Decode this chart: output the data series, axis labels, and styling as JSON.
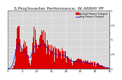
{
  "title": "S.Proj/Inverter Performance: W ARRAY PF",
  "legend_actual": "Actual Power Output",
  "legend_avg": "Avg Power Output",
  "bg_color": "#ffffff",
  "plot_bg_color": "#d8d8d8",
  "bar_color": "#dd0000",
  "avg_color": "#0000cc",
  "grid_color": "#ffffff",
  "ylim": [
    0,
    1.0
  ],
  "yticks": [
    0.0,
    0.125,
    0.25,
    0.375,
    0.5,
    0.625,
    0.75,
    0.875,
    1.0
  ],
  "ytick_labels": [
    "0",
    "",
    ".25",
    "",
    ".5",
    "",
    ".75",
    "",
    "1"
  ],
  "title_fontsize": 4.5,
  "tick_fontsize": 3.0,
  "legend_fontsize": 2.8,
  "n_bars": 350
}
